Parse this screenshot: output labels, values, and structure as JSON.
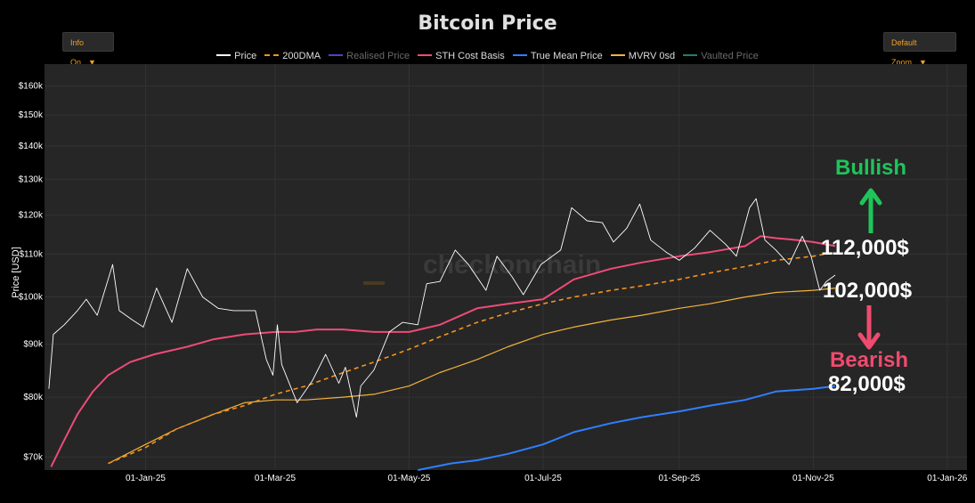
{
  "header": {
    "title": "Bitcoin Price"
  },
  "controls": {
    "info_label": "Info On",
    "zoom_label": "Default Zoom",
    "dropdown_glyph": "▼"
  },
  "legend": [
    {
      "name": "Price",
      "color": "#ffffff",
      "dash": false,
      "dim": false
    },
    {
      "name": "200DMA",
      "color": "#f7931a",
      "dash": true,
      "dim": false
    },
    {
      "name": "Realised Price",
      "color": "#5b3fbf",
      "dash": false,
      "dim": true
    },
    {
      "name": "STH Cost Basis",
      "color": "#ee4b78",
      "dash": false,
      "dim": false
    },
    {
      "name": "True Mean Price",
      "color": "#2f7fff",
      "dash": false,
      "dim": false
    },
    {
      "name": "MVRV 0sd",
      "color": "#f2b33d",
      "dash": false,
      "dim": false
    },
    {
      "name": "Vaulted Price",
      "color": "#1f7f6f",
      "dash": false,
      "dim": true
    }
  ],
  "watermark": "checkonchain",
  "annotations": {
    "bullish_label": "Bullish",
    "bearish_label": "Bearish",
    "level_high": "112,000$",
    "level_mid": "102,000$",
    "level_low": "82,000$",
    "bullish_color": "#1fc45a",
    "bearish_color": "#ee4b6e"
  },
  "chart_data": {
    "type": "line",
    "title": "Bitcoin Price",
    "ylabel": "Price [USD]",
    "xlabel": "",
    "yscale": "log",
    "ylim": [
      68000,
      168000
    ],
    "xlim": [
      "2024-11-16",
      "2026-01-10"
    ],
    "x_ticks": [
      "01-Jan-25",
      "01-Mar-25",
      "01-May-25",
      "01-Jul-25",
      "01-Sep-25",
      "01-Nov-25",
      "01-Jan-26"
    ],
    "x_tick_dates": [
      "2025-01-01",
      "2025-03-01",
      "2025-05-01",
      "2025-07-01",
      "2025-09-01",
      "2025-11-01",
      "2026-01-01"
    ],
    "y_ticks": [
      {
        "value": 70000,
        "label": "$70k"
      },
      {
        "value": 80000,
        "label": "$80k"
      },
      {
        "value": 90000,
        "label": "$90k"
      },
      {
        "value": 100000,
        "label": "$100k"
      },
      {
        "value": 110000,
        "label": "$110k"
      },
      {
        "value": 120000,
        "label": "$120k"
      },
      {
        "value": 130000,
        "label": "$130k"
      },
      {
        "value": 140000,
        "label": "$140k"
      },
      {
        "value": 150000,
        "label": "$150k"
      },
      {
        "value": 160000,
        "label": "$160k"
      }
    ],
    "series": [
      {
        "name": "Price",
        "color": "#ffffff",
        "width": 0.9,
        "dash": false,
        "points": [
          [
            "2024-11-18",
            81500
          ],
          [
            "2024-11-20",
            92000
          ],
          [
            "2024-11-25",
            94000
          ],
          [
            "2024-12-01",
            97000
          ],
          [
            "2024-12-05",
            99500
          ],
          [
            "2024-12-10",
            96000
          ],
          [
            "2024-12-17",
            107500
          ],
          [
            "2024-12-20",
            97000
          ],
          [
            "2024-12-26",
            95000
          ],
          [
            "2024-12-31",
            93500
          ],
          [
            "2025-01-06",
            102000
          ],
          [
            "2025-01-13",
            94500
          ],
          [
            "2025-01-20",
            106500
          ],
          [
            "2025-01-27",
            100000
          ],
          [
            "2025-02-03",
            97500
          ],
          [
            "2025-02-10",
            97000
          ],
          [
            "2025-02-20",
            97000
          ],
          [
            "2025-02-25",
            87000
          ],
          [
            "2025-02-28",
            84000
          ],
          [
            "2025-03-02",
            94000
          ],
          [
            "2025-03-04",
            86000
          ],
          [
            "2025-03-11",
            79000
          ],
          [
            "2025-03-18",
            83000
          ],
          [
            "2025-03-24",
            88000
          ],
          [
            "2025-03-30",
            82500
          ],
          [
            "2025-04-02",
            85500
          ],
          [
            "2025-04-07",
            76500
          ],
          [
            "2025-04-09",
            82000
          ],
          [
            "2025-04-15",
            85000
          ],
          [
            "2025-04-22",
            92500
          ],
          [
            "2025-04-28",
            94500
          ],
          [
            "2025-05-05",
            94000
          ],
          [
            "2025-05-09",
            103000
          ],
          [
            "2025-05-15",
            103500
          ],
          [
            "2025-05-22",
            111000
          ],
          [
            "2025-05-28",
            107500
          ],
          [
            "2025-06-05",
            101500
          ],
          [
            "2025-06-10",
            109500
          ],
          [
            "2025-06-17",
            104500
          ],
          [
            "2025-06-22",
            100500
          ],
          [
            "2025-06-30",
            107500
          ],
          [
            "2025-07-09",
            111000
          ],
          [
            "2025-07-14",
            122000
          ],
          [
            "2025-07-21",
            118500
          ],
          [
            "2025-07-28",
            118000
          ],
          [
            "2025-08-02",
            113000
          ],
          [
            "2025-08-08",
            116500
          ],
          [
            "2025-08-14",
            123000
          ],
          [
            "2025-08-19",
            113500
          ],
          [
            "2025-08-26",
            110500
          ],
          [
            "2025-09-01",
            108500
          ],
          [
            "2025-09-08",
            111500
          ],
          [
            "2025-09-15",
            116000
          ],
          [
            "2025-09-22",
            112500
          ],
          [
            "2025-09-27",
            109500
          ],
          [
            "2025-10-03",
            122000
          ],
          [
            "2025-10-06",
            124500
          ],
          [
            "2025-10-10",
            113500
          ],
          [
            "2025-10-15",
            111000
          ],
          [
            "2025-10-21",
            107500
          ],
          [
            "2025-10-27",
            114500
          ],
          [
            "2025-10-31",
            109500
          ],
          [
            "2025-11-04",
            101500
          ],
          [
            "2025-11-07",
            103500
          ],
          [
            "2025-11-11",
            105000
          ]
        ]
      },
      {
        "name": "200DMA",
        "color": "#f7931a",
        "width": 1.6,
        "dash": true,
        "points": [
          [
            "2024-12-15",
            69000
          ],
          [
            "2025-01-01",
            71500
          ],
          [
            "2025-01-15",
            74500
          ],
          [
            "2025-02-01",
            77000
          ],
          [
            "2025-02-15",
            78500
          ],
          [
            "2025-03-01",
            80500
          ],
          [
            "2025-03-15",
            82000
          ],
          [
            "2025-04-01",
            84500
          ],
          [
            "2025-04-15",
            86500
          ],
          [
            "2025-05-01",
            89000
          ],
          [
            "2025-05-15",
            91500
          ],
          [
            "2025-06-01",
            94500
          ],
          [
            "2025-06-15",
            96500
          ],
          [
            "2025-07-01",
            98500
          ],
          [
            "2025-07-15",
            100000
          ],
          [
            "2025-08-01",
            101500
          ],
          [
            "2025-08-15",
            102500
          ],
          [
            "2025-09-01",
            104000
          ],
          [
            "2025-09-15",
            105500
          ],
          [
            "2025-10-01",
            107000
          ],
          [
            "2025-10-15",
            108500
          ],
          [
            "2025-11-01",
            109500
          ],
          [
            "2025-11-11",
            110500
          ]
        ]
      },
      {
        "name": "STH Cost Basis",
        "color": "#ee4b78",
        "width": 2,
        "dash": false,
        "points": [
          [
            "2024-11-19",
            68500
          ],
          [
            "2024-11-24",
            72000
          ],
          [
            "2024-12-01",
            77000
          ],
          [
            "2024-12-08",
            81000
          ],
          [
            "2024-12-15",
            84000
          ],
          [
            "2024-12-25",
            86500
          ],
          [
            "2025-01-05",
            88000
          ],
          [
            "2025-01-20",
            89500
          ],
          [
            "2025-02-01",
            91000
          ],
          [
            "2025-02-15",
            92000
          ],
          [
            "2025-03-01",
            92500
          ],
          [
            "2025-03-10",
            92500
          ],
          [
            "2025-03-20",
            93000
          ],
          [
            "2025-04-01",
            93000
          ],
          [
            "2025-04-15",
            92500
          ],
          [
            "2025-05-01",
            92500
          ],
          [
            "2025-05-15",
            94000
          ],
          [
            "2025-06-01",
            97500
          ],
          [
            "2025-06-15",
            98500
          ],
          [
            "2025-07-01",
            99500
          ],
          [
            "2025-07-15",
            104000
          ],
          [
            "2025-08-01",
            106500
          ],
          [
            "2025-08-15",
            108000
          ],
          [
            "2025-09-01",
            109500
          ],
          [
            "2025-09-15",
            110500
          ],
          [
            "2025-10-01",
            112000
          ],
          [
            "2025-10-08",
            114500
          ],
          [
            "2025-10-15",
            114000
          ],
          [
            "2025-10-25",
            113500
          ],
          [
            "2025-11-01",
            113000
          ],
          [
            "2025-11-11",
            112000
          ]
        ]
      },
      {
        "name": "True Mean Price",
        "color": "#2f7fff",
        "width": 2,
        "dash": false,
        "points": [
          [
            "2025-05-05",
            68000
          ],
          [
            "2025-05-20",
            69000
          ],
          [
            "2025-06-01",
            69500
          ],
          [
            "2025-06-15",
            70500
          ],
          [
            "2025-07-01",
            72000
          ],
          [
            "2025-07-15",
            74000
          ],
          [
            "2025-08-01",
            75500
          ],
          [
            "2025-08-15",
            76500
          ],
          [
            "2025-09-01",
            77500
          ],
          [
            "2025-09-15",
            78500
          ],
          [
            "2025-10-01",
            79500
          ],
          [
            "2025-10-15",
            81000
          ],
          [
            "2025-11-01",
            81500
          ],
          [
            "2025-11-11",
            82000
          ]
        ]
      },
      {
        "name": "MVRV 0sd",
        "color": "#f2b33d",
        "width": 1.2,
        "dash": false,
        "points": [
          [
            "2024-12-15",
            69000
          ],
          [
            "2025-01-01",
            72000
          ],
          [
            "2025-01-15",
            74500
          ],
          [
            "2025-02-01",
            77000
          ],
          [
            "2025-02-15",
            79000
          ],
          [
            "2025-03-01",
            79500
          ],
          [
            "2025-03-15",
            79500
          ],
          [
            "2025-04-01",
            80000
          ],
          [
            "2025-04-15",
            80500
          ],
          [
            "2025-05-01",
            82000
          ],
          [
            "2025-05-15",
            84500
          ],
          [
            "2025-06-01",
            87000
          ],
          [
            "2025-06-15",
            89500
          ],
          [
            "2025-07-01",
            92000
          ],
          [
            "2025-07-15",
            93500
          ],
          [
            "2025-08-01",
            95000
          ],
          [
            "2025-08-15",
            96000
          ],
          [
            "2025-09-01",
            97500
          ],
          [
            "2025-09-15",
            98500
          ],
          [
            "2025-10-01",
            100000
          ],
          [
            "2025-10-15",
            101000
          ],
          [
            "2025-11-01",
            101500
          ],
          [
            "2025-11-11",
            102000
          ]
        ]
      }
    ]
  }
}
